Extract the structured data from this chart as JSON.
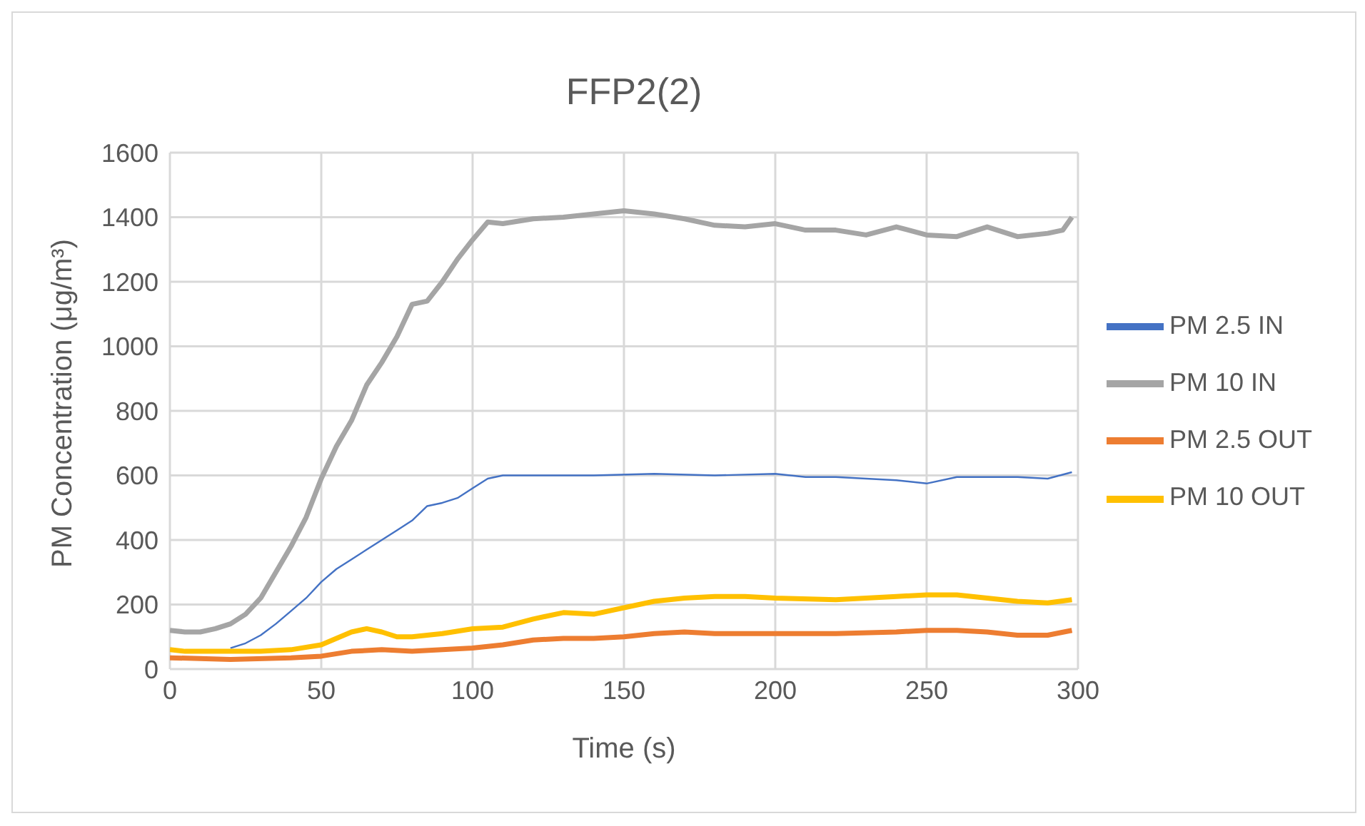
{
  "chart_data": {
    "type": "line",
    "title": "FFP2(2)",
    "xlabel": "Time (s)",
    "ylabel": "PM Concentration (μg/m³)",
    "xlim": [
      0,
      300
    ],
    "xticks": [
      0,
      50,
      100,
      150,
      200,
      250,
      300
    ],
    "ylim": [
      0,
      1600
    ],
    "yticks": [
      0,
      200,
      400,
      600,
      800,
      1000,
      1200,
      1400,
      1600
    ],
    "grid": true,
    "legend": "right",
    "marker": "none",
    "line_style": "solid",
    "series": [
      {
        "name": "PM 2.5 IN",
        "color": "#4472c4",
        "x": [
          20,
          25,
          30,
          35,
          40,
          45,
          50,
          55,
          60,
          65,
          70,
          75,
          80,
          85,
          90,
          95,
          100,
          105,
          110,
          120,
          140,
          160,
          180,
          200,
          210,
          220,
          240,
          250,
          260,
          280,
          290,
          298
        ],
        "values": [
          65,
          80,
          105,
          140,
          180,
          220,
          270,
          310,
          340,
          370,
          400,
          430,
          460,
          505,
          515,
          530,
          560,
          590,
          600,
          600,
          600,
          605,
          600,
          605,
          595,
          595,
          585,
          575,
          595,
          595,
          590,
          610
        ]
      },
      {
        "name": "PM 10 IN",
        "color": "#a5a5a5",
        "x": [
          0,
          5,
          10,
          15,
          20,
          25,
          30,
          35,
          40,
          45,
          50,
          55,
          60,
          65,
          70,
          75,
          80,
          85,
          90,
          95,
          100,
          105,
          110,
          120,
          130,
          140,
          150,
          160,
          170,
          180,
          190,
          200,
          210,
          220,
          230,
          240,
          250,
          260,
          270,
          280,
          290,
          295,
          298
        ],
        "values": [
          120,
          115,
          115,
          125,
          140,
          170,
          220,
          300,
          380,
          470,
          590,
          690,
          770,
          880,
          950,
          1030,
          1130,
          1140,
          1200,
          1270,
          1330,
          1385,
          1380,
          1395,
          1400,
          1410,
          1420,
          1410,
          1395,
          1375,
          1370,
          1380,
          1360,
          1360,
          1345,
          1370,
          1345,
          1340,
          1370,
          1340,
          1350,
          1360,
          1400
        ]
      },
      {
        "name": "PM 2.5 OUT",
        "color": "#ed7d31",
        "x": [
          0,
          20,
          40,
          50,
          60,
          70,
          80,
          90,
          100,
          110,
          120,
          130,
          140,
          150,
          160,
          170,
          180,
          200,
          220,
          240,
          250,
          260,
          270,
          280,
          290,
          298
        ],
        "values": [
          35,
          30,
          35,
          40,
          55,
          60,
          55,
          60,
          65,
          75,
          90,
          95,
          95,
          100,
          110,
          115,
          110,
          110,
          110,
          115,
          120,
          120,
          115,
          105,
          105,
          120
        ]
      },
      {
        "name": "PM 10 OUT",
        "color": "#ffc000",
        "x": [
          0,
          5,
          20,
          30,
          40,
          50,
          55,
          60,
          65,
          70,
          75,
          80,
          90,
          100,
          110,
          120,
          130,
          140,
          150,
          160,
          170,
          180,
          190,
          200,
          220,
          240,
          250,
          260,
          270,
          280,
          290,
          298
        ],
        "values": [
          60,
          55,
          55,
          55,
          60,
          75,
          95,
          115,
          125,
          115,
          100,
          100,
          110,
          125,
          130,
          155,
          175,
          170,
          190,
          210,
          220,
          225,
          225,
          220,
          215,
          225,
          230,
          230,
          220,
          210,
          205,
          215
        ]
      }
    ]
  }
}
